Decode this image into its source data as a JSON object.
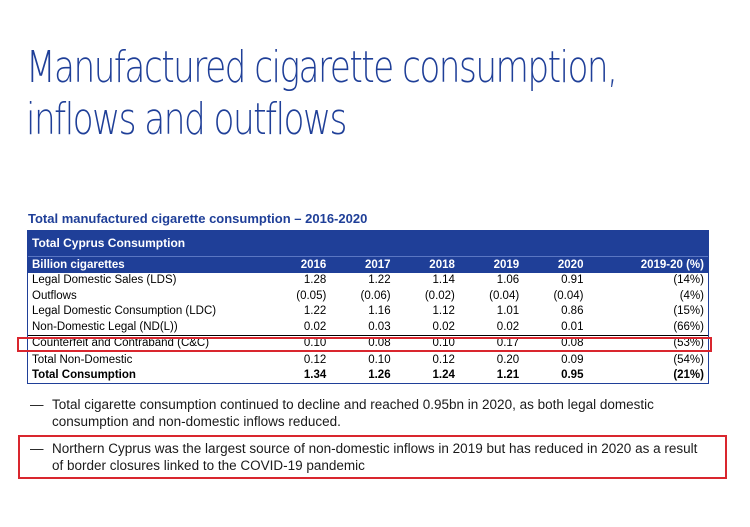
{
  "title_lines": [
    "Manufactured cigarette consumption,",
    "inflows and outflows"
  ],
  "table_title": "Total manufactured cigarette consumption – 2016-2020",
  "section_header": "Total Cyprus Consumption",
  "columns": [
    "Billion cigarettes",
    "2016",
    "2017",
    "2018",
    "2019",
    "2020",
    "2019-20 (%)"
  ],
  "rows": [
    {
      "label": "Legal Domestic Sales (LDS)",
      "values": [
        "1.28",
        "1.22",
        "1.14",
        "1.06",
        "0.91",
        "(14%)"
      ]
    },
    {
      "label": "Outflows",
      "values": [
        "(0.05)",
        "(0.06)",
        "(0.02)",
        "(0.04)",
        "(0.04)",
        "(4%)"
      ]
    },
    {
      "label": "Legal Domestic Consumption (LDC)",
      "values": [
        "1.22",
        "1.16",
        "1.12",
        "1.01",
        "0.86",
        "(15%)"
      ]
    },
    {
      "label": "Non-Domestic Legal (ND(L))",
      "values": [
        "0.02",
        "0.03",
        "0.02",
        "0.02",
        "0.01",
        "(66%)"
      ]
    },
    {
      "label": "Counterfeit and Contraband (C&C)",
      "values": [
        "0.10",
        "0.08",
        "0.10",
        "0.17",
        "0.08",
        "(53%)"
      ]
    },
    {
      "label": "Total Non-Domestic",
      "values": [
        "0.12",
        "0.10",
        "0.12",
        "0.20",
        "0.09",
        "(54%)"
      ]
    },
    {
      "label": "Total Consumption",
      "values": [
        "1.34",
        "1.26",
        "1.24",
        "1.21",
        "0.95",
        "(21%)"
      ]
    }
  ],
  "bullets": [
    {
      "dash": "—",
      "text": "Total cigarette consumption continued to decline and reached 0.95bn in 2020, as both legal domestic consumption and non-domestic inflows reduced."
    },
    {
      "dash": "—",
      "text": "Northern Cyprus was the largest source of non-domestic inflows in 2019 but has reduced in 2020 as a result of border closures linked to the COVID-19 pandemic"
    }
  ],
  "colors": {
    "brand_blue": "#1f3f98",
    "highlight_red": "#d9262e"
  }
}
